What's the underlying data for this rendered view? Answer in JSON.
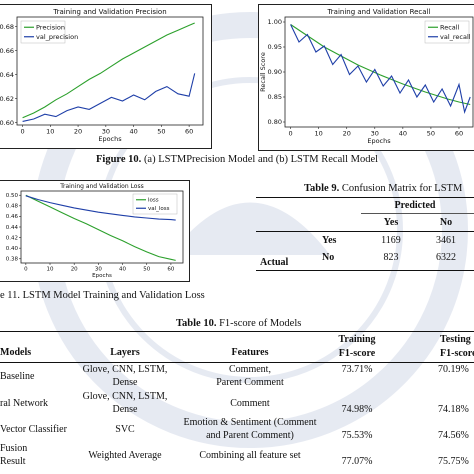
{
  "fig10": {
    "caption_label": "Figure 10.",
    "caption_text": "(a) LSTMPrecision Model and (b) LSTM Recall Model"
  },
  "fig11": {
    "caption": "e 11. LSTM Model Training and Validation Loss"
  },
  "table9": {
    "caption_label": "Table 9.",
    "caption_text": "Confusion Matrix for LSTM",
    "predicted": "Predicted",
    "col_yes": "Yes",
    "col_no": "No",
    "row_yes": "Yes",
    "row_no": "No",
    "actual": "Actual",
    "cells": [
      [
        "1169",
        "3461"
      ],
      [
        "823",
        "6322"
      ]
    ]
  },
  "table10": {
    "caption_label": "Table 10.",
    "caption_text": "F1-score of Models",
    "headers": {
      "models": "Models",
      "layers": "Layers",
      "features": "Features",
      "training_1": "Training",
      "training_2": "F1-score",
      "testing_1": "Testing",
      "testing_2": "F1-score"
    },
    "rows": [
      {
        "model": [
          "Baseline"
        ],
        "layers": [
          "Glove, CNN, LSTM,",
          "Dense"
        ],
        "features": [
          "Comment,",
          "Parent Comment"
        ],
        "train": "73.71%",
        "test": "70.19%"
      },
      {
        "model": [
          "ral Network"
        ],
        "layers": [
          "Glove, CNN, LSTM,",
          "Dense"
        ],
        "features": [
          "Comment"
        ],
        "train": "74.98%",
        "test": "74.18%"
      },
      {
        "model": [
          "Vector Classifier"
        ],
        "layers": [
          "SVC"
        ],
        "features": [
          "Emotion & Sentiment (Comment",
          "and Parent Comment)"
        ],
        "train": "75.53%",
        "test": "74.56%"
      },
      {
        "model": [
          "Fusion",
          "Result"
        ],
        "layers": [
          "Weighted Average"
        ],
        "features": [
          "Combining all feature set"
        ],
        "train": "77.07%",
        "test": "75.75%"
      }
    ]
  },
  "chart_data": [
    {
      "type": "line",
      "title": "Training and Validation Precision",
      "xlabel": "Epochs",
      "ylabel": "",
      "xticks": [
        0,
        10,
        20,
        30,
        40,
        50,
        60
      ],
      "yticks": [
        "0.60",
        "0.62",
        "0.64",
        "0.66",
        "0.68"
      ],
      "xlim": [
        -2,
        65
      ],
      "ylim": [
        0.598,
        0.688
      ],
      "legend": "upper-left",
      "series": [
        {
          "name": "Precision",
          "color": "#2ca02c",
          "x": [
            0,
            4,
            8,
            12,
            16,
            20,
            24,
            28,
            32,
            36,
            40,
            44,
            48,
            52,
            56,
            60,
            62
          ],
          "y": [
            0.604,
            0.608,
            0.613,
            0.619,
            0.624,
            0.63,
            0.636,
            0.641,
            0.647,
            0.653,
            0.658,
            0.663,
            0.668,
            0.673,
            0.677,
            0.681,
            0.683
          ]
        },
        {
          "name": "val_precision",
          "color": "#1f3fa8",
          "x": [
            0,
            4,
            8,
            12,
            16,
            20,
            24,
            28,
            32,
            36,
            40,
            44,
            48,
            52,
            56,
            60,
            62
          ],
          "y": [
            0.601,
            0.603,
            0.607,
            0.605,
            0.61,
            0.613,
            0.611,
            0.616,
            0.621,
            0.618,
            0.623,
            0.619,
            0.626,
            0.63,
            0.624,
            0.622,
            0.641
          ]
        }
      ]
    },
    {
      "type": "line",
      "title": "Training and Validation Recall",
      "xlabel": "Epochs",
      "ylabel": "Recall Score",
      "xticks": [
        0,
        10,
        20,
        30,
        40,
        50,
        60
      ],
      "yticks": [
        "0.80",
        "0.85",
        "0.90",
        "0.95",
        "1.00"
      ],
      "xlim": [
        -2,
        65
      ],
      "ylim": [
        0.79,
        1.01
      ],
      "legend": "upper-right",
      "series": [
        {
          "name": "Recall",
          "color": "#2ca02c",
          "x": [
            0,
            4,
            8,
            12,
            16,
            20,
            24,
            28,
            32,
            36,
            40,
            44,
            48,
            52,
            56,
            60,
            64
          ],
          "y": [
            0.995,
            0.98,
            0.965,
            0.95,
            0.938,
            0.926,
            0.914,
            0.904,
            0.894,
            0.885,
            0.876,
            0.868,
            0.86,
            0.853,
            0.846,
            0.84,
            0.835
          ]
        },
        {
          "name": "val_recall",
          "color": "#1f3fa8",
          "x": [
            0,
            3,
            6,
            9,
            12,
            15,
            18,
            21,
            24,
            27,
            30,
            33,
            36,
            39,
            42,
            45,
            48,
            51,
            54,
            57,
            60,
            62,
            64
          ],
          "y": [
            0.995,
            0.96,
            0.975,
            0.94,
            0.952,
            0.915,
            0.935,
            0.895,
            0.912,
            0.88,
            0.905,
            0.872,
            0.892,
            0.858,
            0.884,
            0.85,
            0.874,
            0.84,
            0.866,
            0.832,
            0.875,
            0.82,
            0.85
          ]
        }
      ]
    },
    {
      "type": "line",
      "title": "Training and Validation Loss",
      "xlabel": "Epochs",
      "ylabel": "",
      "xticks": [
        0,
        10,
        20,
        30,
        40,
        50,
        60
      ],
      "yticks": [
        "0.38",
        "0.40",
        "0.42",
        "0.44",
        "0.46",
        "0.48",
        "0.50"
      ],
      "xlim": [
        -2,
        65
      ],
      "ylim": [
        0.372,
        0.508
      ],
      "legend": "upper-right",
      "series": [
        {
          "name": "loss",
          "color": "#2ca02c",
          "x": [
            0,
            5,
            10,
            15,
            20,
            25,
            30,
            35,
            40,
            45,
            50,
            55,
            60,
            62
          ],
          "y": [
            0.5,
            0.489,
            0.478,
            0.467,
            0.456,
            0.446,
            0.435,
            0.424,
            0.414,
            0.403,
            0.393,
            0.384,
            0.379,
            0.377
          ]
        },
        {
          "name": "val_loss",
          "color": "#1f3fa8",
          "x": [
            0,
            5,
            10,
            15,
            20,
            25,
            30,
            35,
            40,
            45,
            50,
            55,
            60,
            62
          ],
          "y": [
            0.499,
            0.492,
            0.486,
            0.481,
            0.476,
            0.472,
            0.468,
            0.465,
            0.462,
            0.459,
            0.457,
            0.455,
            0.454,
            0.453
          ]
        }
      ]
    }
  ]
}
